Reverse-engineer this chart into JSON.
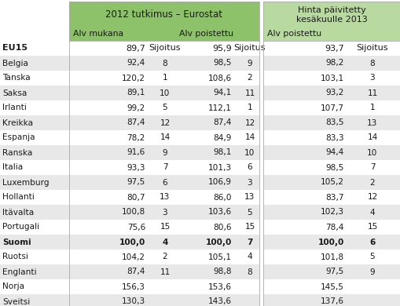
{
  "header1": "2012 tutkimus – Eurostat",
  "header2": "Hinta päivitetty\nkesäkuulle 2013",
  "subheader_left1": "Alv mukana",
  "subheader_left2": "Alv poistettu",
  "subheader_right": "Alv poistettu",
  "rows": [
    {
      "country": "EU15",
      "v1": "89,7",
      "s1": "Sijoitus",
      "v2": "95,9",
      "s2": "Sijoitus",
      "v3": "93,7",
      "s3": "Sijoitus",
      "bold": false,
      "is_eu15": true
    },
    {
      "country": "Belgia",
      "v1": "92,4",
      "s1": "8",
      "v2": "98,5",
      "s2": "9",
      "v3": "98,2",
      "s3": "8",
      "bold": false,
      "is_eu15": false
    },
    {
      "country": "Tanska",
      "v1": "120,2",
      "s1": "1",
      "v2": "108,6",
      "s2": "2",
      "v3": "103,1",
      "s3": "3",
      "bold": false,
      "is_eu15": false
    },
    {
      "country": "Saksa",
      "v1": "89,1",
      "s1": "10",
      "v2": "94,1",
      "s2": "11",
      "v3": "93,2",
      "s3": "11",
      "bold": false,
      "is_eu15": false
    },
    {
      "country": "Irlanti",
      "v1": "99,2",
      "s1": "5",
      "v2": "112,1",
      "s2": "1",
      "v3": "107,7",
      "s3": "1",
      "bold": false,
      "is_eu15": false
    },
    {
      "country": "Kreikka",
      "v1": "87,4",
      "s1": "12",
      "v2": "87,4",
      "s2": "12",
      "v3": "83,5",
      "s3": "13",
      "bold": false,
      "is_eu15": false
    },
    {
      "country": "Espanja",
      "v1": "78,2",
      "s1": "14",
      "v2": "84,9",
      "s2": "14",
      "v3": "83,3",
      "s3": "14",
      "bold": false,
      "is_eu15": false
    },
    {
      "country": "Ranska",
      "v1": "91,6",
      "s1": "9",
      "v2": "98,1",
      "s2": "10",
      "v3": "94,4",
      "s3": "10",
      "bold": false,
      "is_eu15": false
    },
    {
      "country": "Italia",
      "v1": "93,3",
      "s1": "7",
      "v2": "101,3",
      "s2": "6",
      "v3": "98,5",
      "s3": "7",
      "bold": false,
      "is_eu15": false
    },
    {
      "country": "Luxemburg",
      "v1": "97,5",
      "s1": "6",
      "v2": "106,9",
      "s2": "3",
      "v3": "105,2",
      "s3": "2",
      "bold": false,
      "is_eu15": false
    },
    {
      "country": "Hollanti",
      "v1": "80,7",
      "s1": "13",
      "v2": "86,0",
      "s2": "13",
      "v3": "83,7",
      "s3": "12",
      "bold": false,
      "is_eu15": false
    },
    {
      "country": "Itävalta",
      "v1": "100,8",
      "s1": "3",
      "v2": "103,6",
      "s2": "5",
      "v3": "102,3",
      "s3": "4",
      "bold": false,
      "is_eu15": false
    },
    {
      "country": "Portugali",
      "v1": "75,6",
      "s1": "15",
      "v2": "80,6",
      "s2": "15",
      "v3": "78,4",
      "s3": "15",
      "bold": false,
      "is_eu15": false
    },
    {
      "country": "Suomi",
      "v1": "100,0",
      "s1": "4",
      "v2": "100,0",
      "s2": "7",
      "v3": "100,0",
      "s3": "6",
      "bold": true,
      "is_eu15": false
    },
    {
      "country": "Ruotsi",
      "v1": "104,2",
      "s1": "2",
      "v2": "105,1",
      "s2": "4",
      "v3": "101,8",
      "s3": "5",
      "bold": false,
      "is_eu15": false
    },
    {
      "country": "Englanti",
      "v1": "87,4",
      "s1": "11",
      "v2": "98,8",
      "s2": "8",
      "v3": "97,5",
      "s3": "9",
      "bold": false,
      "is_eu15": false
    },
    {
      "country": "Norja",
      "v1": "156,3",
      "s1": "",
      "v2": "153,6",
      "s2": "",
      "v3": "145,5",
      "s3": "",
      "bold": false,
      "is_eu15": false
    },
    {
      "country": "Sveitsi",
      "v1": "130,3",
      "s1": "",
      "v2": "143,6",
      "s2": "",
      "v3": "137,6",
      "s3": "",
      "bold": false,
      "is_eu15": false
    }
  ],
  "col_green_dark": "#8dc16a",
  "col_green_light": "#b8d9a0",
  "col_row_grey": "#e8e8e8",
  "col_row_white": "#ffffff",
  "col_text": "#1a1a1a",
  "figsize": [
    5.1,
    3.9
  ],
  "dpi": 100
}
